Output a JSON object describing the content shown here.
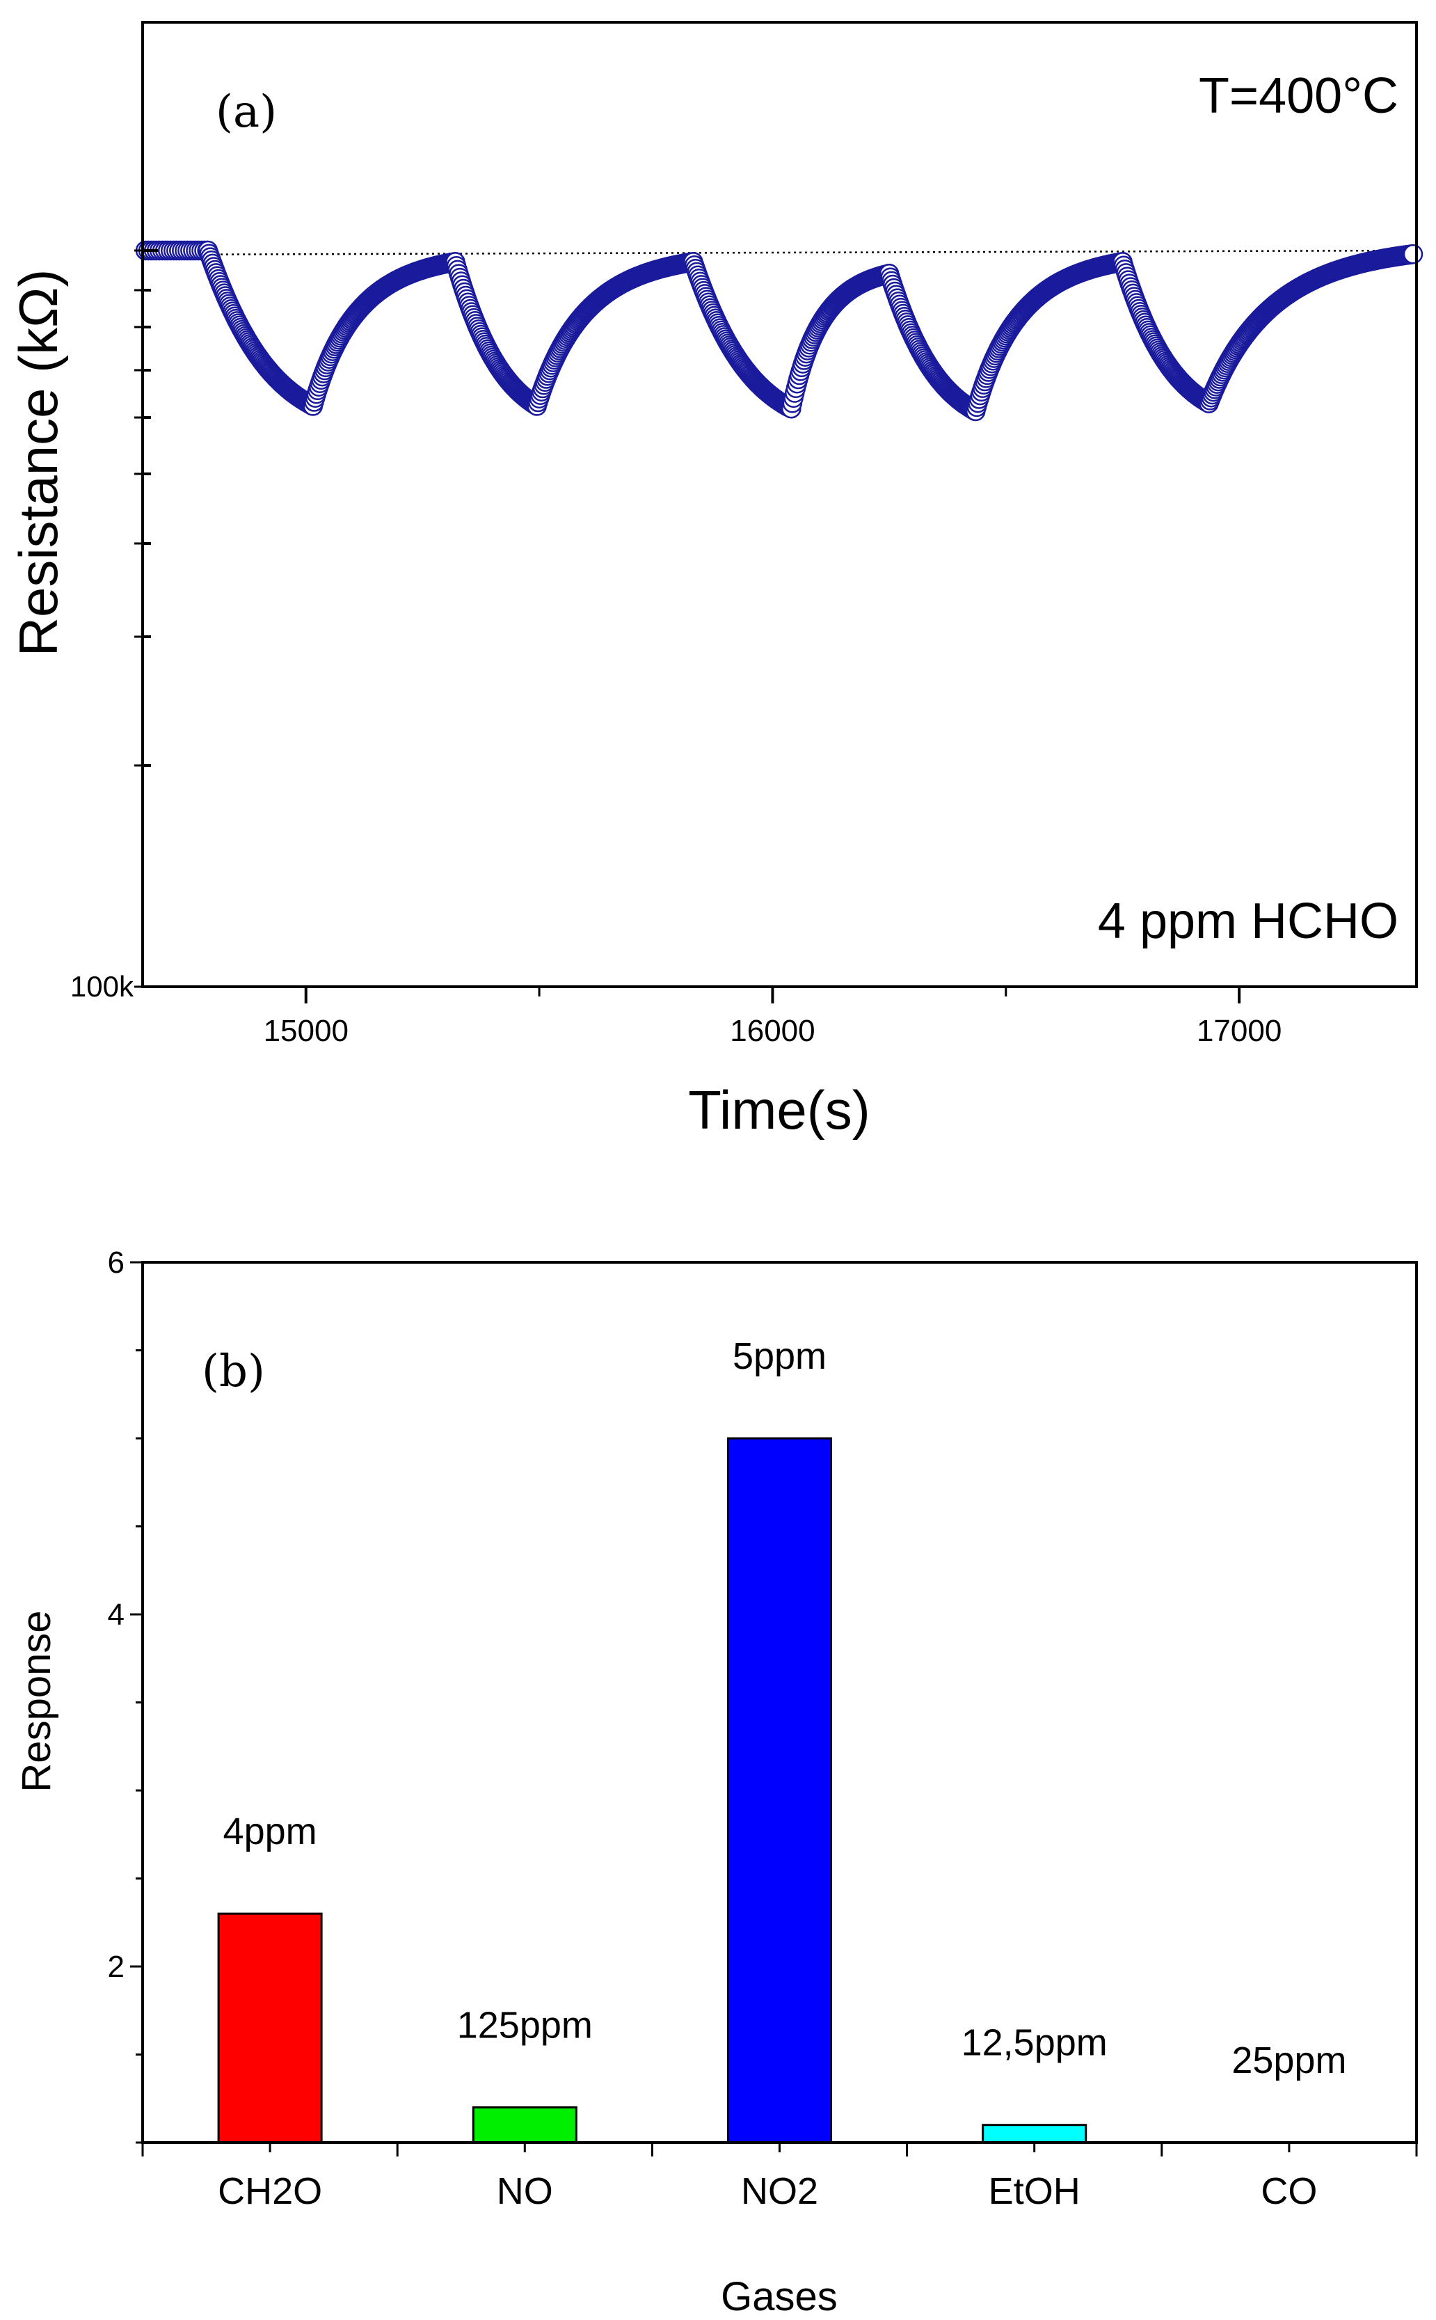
{
  "chart_data": [
    {
      "panel": "(a)",
      "type": "scatter",
      "marker": "open-circle",
      "series_color": "#1a1a9c",
      "xlabel": "Time(s)",
      "ylabel": "Resistance (kΩ)",
      "xlim": [
        14650,
        17380
      ],
      "x_ticks": [
        15000,
        16000,
        17000
      ],
      "x_tick_labels": [
        "15000",
        "16000",
        "17000"
      ],
      "y_scale": "log",
      "y_tick_label": "100k",
      "annotations": [
        "T=400°C",
        "4 ppm HCHO"
      ],
      "baseline": "dotted",
      "baseline_value": 1.0,
      "response_cycles": [
        {
          "gas_on": 14790,
          "gas_off": 15015,
          "recovery_end": 15320,
          "min_value": 0.615,
          "recovered_value": 0.965
        },
        {
          "gas_on": 15320,
          "gas_off": 15495,
          "recovery_end": 15830,
          "min_value": 0.615,
          "recovered_value": 0.965
        },
        {
          "gas_on": 15830,
          "gas_off": 16040,
          "recovery_end": 16250,
          "min_value": 0.61,
          "recovered_value": 0.93
        },
        {
          "gas_on": 16250,
          "gas_off": 16435,
          "recovery_end": 16750,
          "min_value": 0.605,
          "recovered_value": 0.965
        },
        {
          "gas_on": 16750,
          "gas_off": 16935,
          "recovery_end": 17380,
          "min_value": 0.62,
          "recovered_value": 0.99
        }
      ]
    },
    {
      "panel": "(b)",
      "type": "bar",
      "xlabel": "Gases",
      "ylabel": "Response",
      "ylim": [
        1,
        6
      ],
      "y_ticks": [
        2,
        4,
        6
      ],
      "y_tick_labels": [
        "2",
        "4",
        "6"
      ],
      "categories": [
        "CH2O",
        "NO",
        "NO2",
        "EtOH",
        "CO"
      ],
      "values": [
        2.3,
        1.2,
        5.0,
        1.1,
        1.0
      ],
      "concentrations": [
        "4ppm",
        "125ppm",
        "5ppm",
        "12,5ppm",
        "25ppm"
      ],
      "colors": [
        "#ff0000",
        "#00ee00",
        "#0000ff",
        "#00ffff",
        "#ffffff"
      ]
    }
  ]
}
